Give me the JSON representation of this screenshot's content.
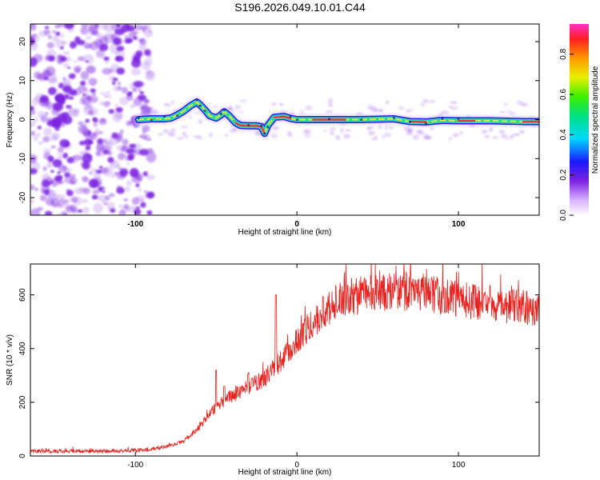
{
  "title": "S196.2026.049.10.01.C44",
  "colors": {
    "snr_line": "#e8221e",
    "frame": "#000000",
    "speckle": "#7a24e0",
    "track_outer": "#2a1be8",
    "track_mid": "#2fd6d2",
    "track_inner": "#ff2a3c",
    "track_yellow": "#ffe23a"
  },
  "chart_data": [
    {
      "type": "heatmap",
      "name": "spectrogram",
      "xlabel": "Height of straight line (km)",
      "ylabel": "Frequency (Hz)",
      "xlim": [
        -165,
        150
      ],
      "ylim": [
        -24.5,
        24.5
      ],
      "xticks": [
        -100,
        0,
        100
      ],
      "yticks": [
        -20,
        -10,
        0,
        10,
        20
      ],
      "colorbar": {
        "label": "Normalized spectral amplitude",
        "range": [
          0,
          0.95
        ],
        "ticks": [
          0.0,
          0.2,
          0.4,
          0.6,
          0.8
        ]
      },
      "noise_region_x": [
        -165,
        -95
      ],
      "ridge": [
        [
          -98,
          0
        ],
        [
          -90,
          0.2
        ],
        [
          -82,
          0.2
        ],
        [
          -78,
          0.4
        ],
        [
          -74,
          1.2
        ],
        [
          -70,
          2.2
        ],
        [
          -66,
          3.5
        ],
        [
          -62,
          4.5
        ],
        [
          -60,
          3.8
        ],
        [
          -57,
          2.5
        ],
        [
          -54,
          1.0
        ],
        [
          -50,
          0.4
        ],
        [
          -47,
          1.2
        ],
        [
          -45,
          2.0
        ],
        [
          -42,
          1.0
        ],
        [
          -38,
          -0.8
        ],
        [
          -35,
          -1.5
        ],
        [
          -30,
          -1.6
        ],
        [
          -25,
          -1.6
        ],
        [
          -22,
          -1.8
        ],
        [
          -20,
          -3.5
        ],
        [
          -18,
          -1.5
        ],
        [
          -14,
          0.6
        ],
        [
          -8,
          0.8
        ],
        [
          -4,
          0.3
        ],
        [
          0,
          0
        ],
        [
          5,
          0
        ],
        [
          20,
          0
        ],
        [
          40,
          0
        ],
        [
          60,
          0.2
        ],
        [
          70,
          -0.5
        ],
        [
          80,
          -0.6
        ],
        [
          90,
          -0.2
        ],
        [
          100,
          -0.3
        ],
        [
          120,
          -0.3
        ],
        [
          140,
          -0.5
        ],
        [
          150,
          -0.5
        ]
      ]
    },
    {
      "type": "line",
      "name": "snr",
      "xlabel": "Height of straight line (km)",
      "ylabel": "SNR (10 * v/v)",
      "xlim": [
        -165,
        150
      ],
      "ylim": [
        0,
        715
      ],
      "xticks": [
        -100,
        0,
        100
      ],
      "yticks": [
        0,
        200,
        400,
        600
      ],
      "envelope": [
        [
          -165,
          18
        ],
        [
          -120,
          18
        ],
        [
          -95,
          22
        ],
        [
          -80,
          35
        ],
        [
          -70,
          55
        ],
        [
          -60,
          110
        ],
        [
          -50,
          185
        ],
        [
          -40,
          225
        ],
        [
          -30,
          255
        ],
        [
          -20,
          290
        ],
        [
          -10,
          350
        ],
        [
          0,
          430
        ],
        [
          10,
          500
        ],
        [
          20,
          555
        ],
        [
          30,
          590
        ],
        [
          50,
          605
        ],
        [
          70,
          615
        ],
        [
          90,
          595
        ],
        [
          110,
          575
        ],
        [
          130,
          560
        ],
        [
          150,
          545
        ]
      ],
      "spikes": [
        [
          -50,
          320
        ],
        [
          -45,
          260
        ],
        [
          -13,
          600
        ],
        [
          -30,
          310
        ]
      ]
    }
  ]
}
